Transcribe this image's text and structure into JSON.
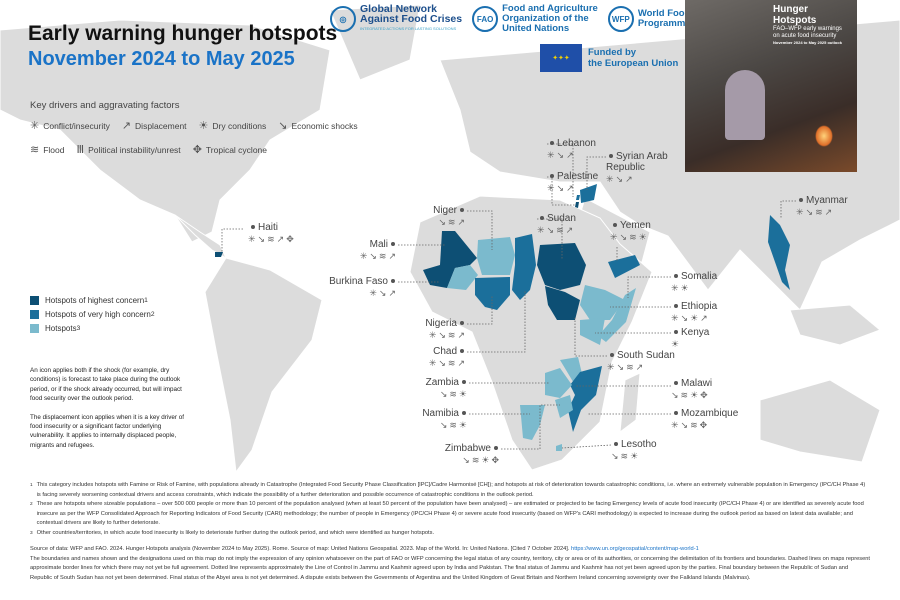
{
  "header": {
    "title": "Early warning hunger hotspots",
    "subtitle": "November 2024 to May 2025"
  },
  "logos": {
    "gnafc": {
      "line1": "Global Network",
      "line2": "Against Food Crises",
      "tagline": "INTEGRATED ACTIONS FOR LASTING SOLUTIONS"
    },
    "fao": {
      "mark": "FAO",
      "line1": "Food and Agriculture",
      "line2": "Organization of the",
      "line3": "United Nations"
    },
    "wfp": {
      "mark": "WFP",
      "line1": "World Food",
      "line2": "Programme"
    },
    "eu": {
      "line1": "Funded by",
      "line2": "the European Union"
    }
  },
  "cover": {
    "title": "Hunger Hotspots",
    "line1": "FAO–WFP early warnings",
    "line2": "on acute food insecurity",
    "period": "November 2024 to May 2025 outlook"
  },
  "drivers": {
    "heading": "Key drivers and aggravating factors",
    "items": [
      {
        "code": "C",
        "icon": "conflict-icon",
        "glyph": "✳",
        "label": "Conflict/insecurity"
      },
      {
        "code": "D",
        "icon": "displacement-icon",
        "glyph": "↗",
        "label": "Displacement"
      },
      {
        "code": "R",
        "icon": "dry-conditions-icon",
        "glyph": "☀",
        "label": "Dry conditions"
      },
      {
        "code": "E",
        "icon": "economic-shocks-icon",
        "glyph": "↘",
        "label": "Economic shocks"
      },
      {
        "code": "F",
        "icon": "flood-icon",
        "glyph": "≋",
        "label": "Flood"
      },
      {
        "code": "P",
        "icon": "political-instability-icon",
        "glyph": "Ⅲ",
        "label": "Political instability/unrest"
      },
      {
        "code": "T",
        "icon": "tropical-cyclone-icon",
        "glyph": "✥",
        "label": "Tropical cyclone"
      }
    ]
  },
  "legend": {
    "items": [
      {
        "label": "Hotspots of highest concern",
        "sup": "1",
        "color": "#0d4f74"
      },
      {
        "label": "Hotspots of very high concern",
        "sup": "2",
        "color": "#1b6f9b"
      },
      {
        "label": "Hotspots",
        "sup": "3",
        "color": "#7bbacd"
      }
    ]
  },
  "notes": [
    "An icon applies both if the shock (for example, dry conditions) is forecast to take place during the outlook period, or if the shock already occurred, but will impact food security over the outlook period.",
    "The displacement icon applies when it is a key driver of food insecurity or a significant factor underlying vulnerability. It applies to internally displaced people, migrants and refugees."
  ],
  "hotspots": [
    {
      "name": "Haiti",
      "level": "highest",
      "drivers": [
        "C",
        "E",
        "F",
        "D",
        "T"
      ]
    },
    {
      "name": "Mali",
      "level": "highest",
      "drivers": [
        "C",
        "E",
        "F",
        "D"
      ]
    },
    {
      "name": "Burkina Faso",
      "level": "hotspot",
      "drivers": [
        "C",
        "E",
        "D"
      ]
    },
    {
      "name": "Niger",
      "level": "hotspot",
      "drivers": [
        "E",
        "F",
        "D"
      ]
    },
    {
      "name": "Nigeria",
      "level": "very_high",
      "drivers": [
        "C",
        "E",
        "F",
        "D"
      ]
    },
    {
      "name": "Chad",
      "level": "very_high",
      "drivers": [
        "C",
        "E",
        "F",
        "D"
      ]
    },
    {
      "name": "Sudan",
      "level": "highest",
      "drivers": [
        "C",
        "E",
        "F",
        "D"
      ]
    },
    {
      "name": "Lebanon",
      "level": "very_high",
      "drivers": [
        "C",
        "E",
        "D"
      ]
    },
    {
      "name": "Palestine",
      "level": "highest",
      "drivers": [
        "C",
        "E",
        "D"
      ]
    },
    {
      "name": "Syrian Arab Republic",
      "level": "very_high",
      "drivers": [
        "C",
        "E",
        "D"
      ]
    },
    {
      "name": "Yemen",
      "level": "very_high",
      "drivers": [
        "C",
        "E",
        "F",
        "R"
      ]
    },
    {
      "name": "Myanmar",
      "level": "very_high",
      "drivers": [
        "C",
        "E",
        "F",
        "D"
      ]
    },
    {
      "name": "Somalia",
      "level": "hotspot",
      "drivers": [
        "C",
        "R"
      ]
    },
    {
      "name": "Ethiopia",
      "level": "hotspot",
      "drivers": [
        "C",
        "E",
        "R",
        "D"
      ]
    },
    {
      "name": "Kenya",
      "level": "hotspot",
      "drivers": [
        "R"
      ]
    },
    {
      "name": "South Sudan",
      "level": "highest",
      "drivers": [
        "C",
        "E",
        "F",
        "D"
      ]
    },
    {
      "name": "Malawi",
      "level": "hotspot",
      "drivers": [
        "E",
        "F",
        "R",
        "T"
      ]
    },
    {
      "name": "Mozambique",
      "level": "very_high",
      "drivers": [
        "C",
        "E",
        "F",
        "T"
      ]
    },
    {
      "name": "Lesotho",
      "level": "hotspot",
      "drivers": [
        "E",
        "F",
        "R"
      ]
    },
    {
      "name": "Zambia",
      "level": "hotspot",
      "drivers": [
        "E",
        "F",
        "R"
      ]
    },
    {
      "name": "Namibia",
      "level": "hotspot",
      "drivers": [
        "E",
        "F",
        "R"
      ]
    },
    {
      "name": "Zimbabwe",
      "level": "hotspot",
      "drivers": [
        "E",
        "F",
        "R",
        "T"
      ]
    }
  ],
  "footnotes": [
    {
      "n": "1",
      "text": "This category includes hotspots with Famine or Risk of Famine, with populations already in Catastrophe (Integrated Food Security Phase Classification [IPC]/Cadre Harmonisé [CH]); and hotspots at risk of deterioration towards catastrophic conditions, i.e. where an extremely vulnerable population in Emergency (IPC/CH Phase 4) is facing severely worsening contextual drivers and access constraints, which indicate the possibility of a further deterioration and possible occurrence of catastrophic conditions in the outlook period."
    },
    {
      "n": "2",
      "text": "These are hotspots where sizeable populations – over 500 000 people or more than 10 percent of the population analysed (when at least 50 percent of the population have been analysed) – are estimated or projected to be facing Emergency levels of acute food insecurity (IPC/CH Phase 4) or are identified as severely acute food insecure as per the WFP Consolidated Approach for Reporting Indicators of Food Security (CARI) methodology; the number of people in Emergency (IPC/CH Phase 4) or severe acute food insecurity (based on WFP's CARI methodology) is expected to increase during the outlook period as based on latest data available; and contextual drivers are likely to further deteriorate."
    },
    {
      "n": "3",
      "text": "Other countries/territories, in which acute food insecurity is likely to deteriorate further during the outlook period, and which were identified as hunger hotspots."
    }
  ],
  "source": {
    "text": "Source of data: WFP and FAO. 2024. Hunger Hotspots analysis (November 2024 to May 2025). Rome. Source of map: United Nations Geospatial. 2023. Map of the World. In: United Nations. [Cited 7 October 2024].",
    "link": "https://www.un.org/geospatial/content/map-world-1",
    "disclaimer": "The boundaries and names shown and the designations used on this map do not imply the expression of any opinion whatsoever on the part of FAO or WFP concerning the legal status of any country, territory, city or area or of its authorities, or concerning the delimitation of its frontiers and boundaries. Dashed lines on maps represent approximate border lines for which there may not yet be full agreement. Dotted line represents approximately the Line of Control in Jammu and Kashmir agreed upon by India and Pakistan. The final status of Jammu and Kashmir has not yet been agreed upon by the parties. Final boundary between the Republic of Sudan and Republic of South Sudan has not yet been determined. Final status of the Abyei area is not yet determined. A dispute exists between the Governments of Argentina and the United Kingdom of Great Britain and Northern Ireland concerning sovereignty over the Falkland Islands (Malvinas)."
  }
}
